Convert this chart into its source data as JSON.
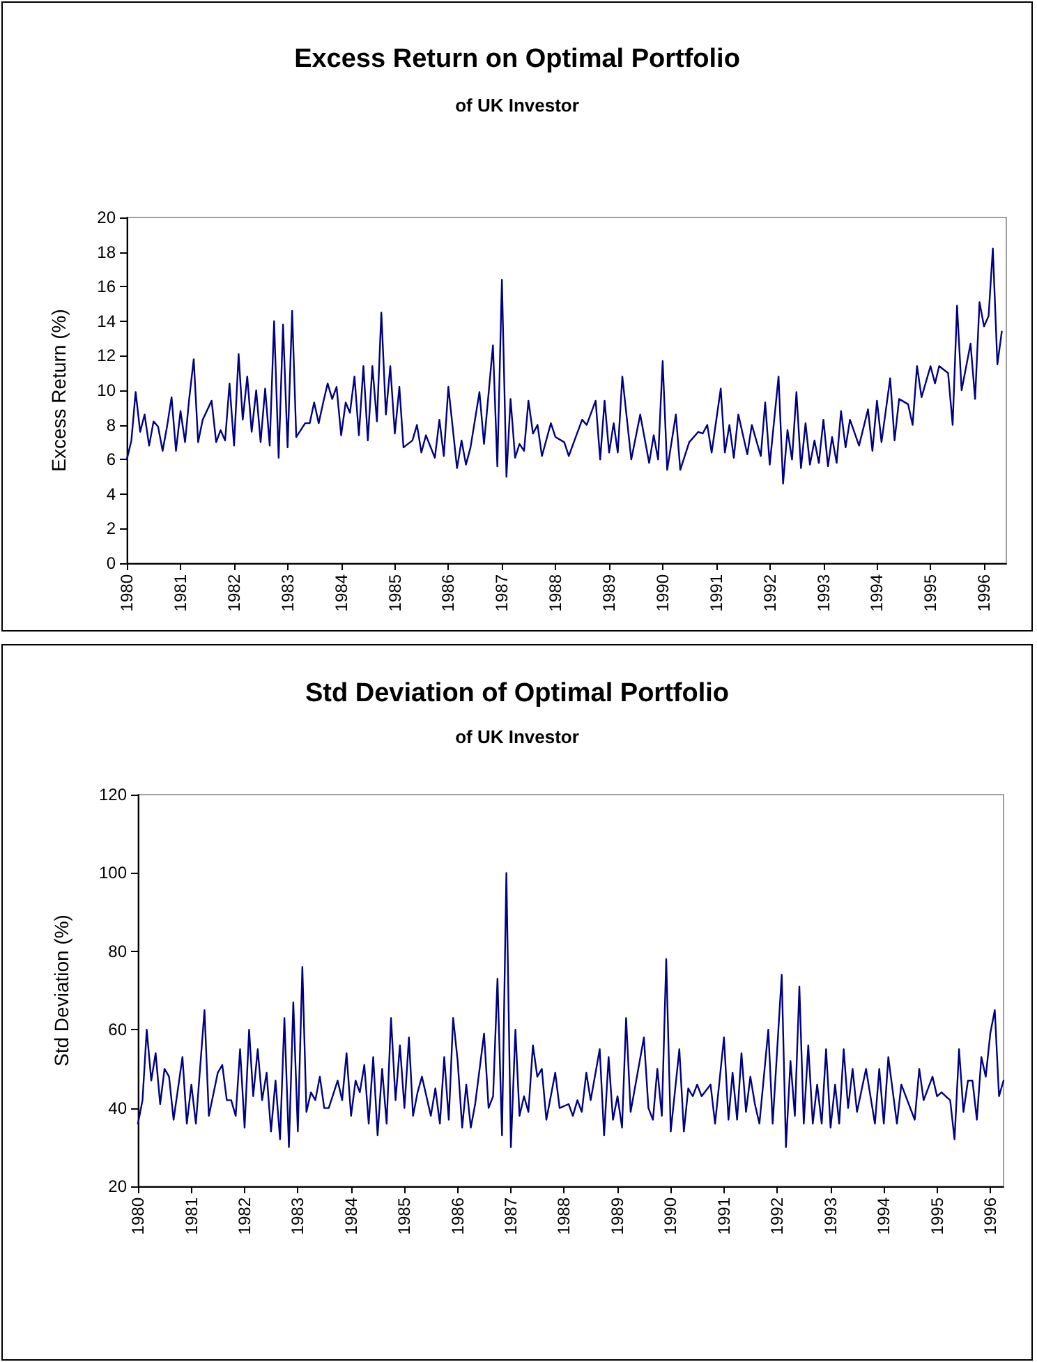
{
  "chart_data": [
    {
      "type": "line",
      "title": "Excess Return on Optimal Portfolio",
      "subtitle": "of UK Investor",
      "ylabel": "Excess Return (%)",
      "marker": "none",
      "line_style": "solid",
      "grid": false,
      "xlim": [
        "1980-01",
        "1996-06"
      ],
      "xticks": [
        "1980",
        "1981",
        "1982",
        "1983",
        "1984",
        "1985",
        "1986",
        "1987",
        "1988",
        "1989",
        "1990",
        "1991",
        "1992",
        "1993",
        "1994",
        "1995",
        "1996"
      ],
      "ylim": [
        0,
        20
      ],
      "yticks": [
        0,
        2,
        4,
        6,
        8,
        10,
        12,
        14,
        16,
        18,
        20
      ],
      "series": [
        {
          "color": "#000080",
          "x": [
            "1980-01",
            "1980-02",
            "1980-03",
            "1980-04",
            "1980-05",
            "1980-06",
            "1980-07",
            "1980-08",
            "1980-09",
            "1980-10",
            "1980-11",
            "1980-12",
            "1981-01",
            "1981-02",
            "1981-03",
            "1981-04",
            "1981-05",
            "1981-06",
            "1981-08",
            "1981-09",
            "1981-10",
            "1981-11",
            "1981-12",
            "1982-01",
            "1982-02",
            "1982-03",
            "1982-04",
            "1982-05",
            "1982-06",
            "1982-07",
            "1982-08",
            "1982-09",
            "1982-10",
            "1982-11",
            "1982-12",
            "1983-01",
            "1983-02",
            "1983-03",
            "1983-05",
            "1983-06",
            "1983-07",
            "1983-08",
            "1983-09",
            "1983-10",
            "1983-11",
            "1983-12",
            "1984-01",
            "1984-02",
            "1984-03",
            "1984-04",
            "1984-05",
            "1984-06",
            "1984-07",
            "1984-08",
            "1984-09",
            "1984-10",
            "1984-11",
            "1984-12",
            "1985-01",
            "1985-02",
            "1985-03",
            "1985-05",
            "1985-06",
            "1985-07",
            "1985-08",
            "1985-10",
            "1985-11",
            "1985-12",
            "1986-01",
            "1986-03",
            "1986-04",
            "1986-05",
            "1986-06",
            "1986-08",
            "1986-09",
            "1986-11",
            "1986-12",
            "1987-01",
            "1987-02",
            "1987-03",
            "1987-04",
            "1987-05",
            "1987-06",
            "1987-07",
            "1987-08",
            "1987-09",
            "1987-10",
            "1987-12",
            "1988-01",
            "1988-03",
            "1988-04",
            "1988-05",
            "1988-07",
            "1988-08",
            "1988-10",
            "1988-11",
            "1988-12",
            "1989-01",
            "1989-02",
            "1989-03",
            "1989-04",
            "1989-06",
            "1989-08",
            "1989-10",
            "1989-11",
            "1989-12",
            "1990-01",
            "1990-02",
            "1990-04",
            "1990-05",
            "1990-07",
            "1990-09",
            "1990-10",
            "1990-11",
            "1990-12",
            "1991-02",
            "1991-03",
            "1991-04",
            "1991-05",
            "1991-06",
            "1991-08",
            "1991-09",
            "1991-11",
            "1991-12",
            "1992-01",
            "1992-03",
            "1992-04",
            "1992-05",
            "1992-06",
            "1992-07",
            "1992-08",
            "1992-09",
            "1992-10",
            "1992-11",
            "1992-12",
            "1993-01",
            "1993-02",
            "1993-03",
            "1993-04",
            "1993-05",
            "1993-06",
            "1993-07",
            "1993-09",
            "1993-11",
            "1993-12",
            "1994-01",
            "1994-02",
            "1994-04",
            "1994-05",
            "1994-06",
            "1994-08",
            "1994-09",
            "1994-10",
            "1994-11",
            "1995-01",
            "1995-02",
            "1995-03",
            "1995-05",
            "1995-06",
            "1995-07",
            "1995-08",
            "1995-10",
            "1995-11",
            "1995-12",
            "1996-01",
            "1996-02",
            "1996-03",
            "1996-04",
            "1996-05"
          ],
          "values": [
            6.0,
            7.1,
            9.9,
            7.6,
            8.6,
            6.8,
            8.2,
            7.9,
            6.5,
            7.9,
            9.6,
            6.5,
            8.8,
            7.0,
            9.5,
            11.8,
            7.0,
            8.3,
            9.4,
            7.0,
            7.7,
            7.1,
            10.4,
            6.8,
            12.1,
            8.3,
            10.8,
            7.6,
            10.0,
            7.0,
            10.1,
            6.8,
            14.0,
            6.1,
            13.8,
            6.7,
            14.6,
            7.3,
            8.1,
            8.1,
            9.3,
            8.1,
            9.3,
            10.4,
            9.5,
            10.2,
            7.4,
            9.3,
            8.7,
            10.8,
            7.4,
            11.4,
            7.1,
            11.4,
            8.2,
            14.5,
            8.6,
            11.4,
            7.5,
            10.2,
            6.7,
            7.1,
            8.0,
            6.4,
            7.4,
            6.1,
            8.3,
            6.2,
            10.2,
            5.5,
            7.1,
            5.7,
            6.7,
            9.9,
            6.9,
            12.6,
            5.6,
            16.4,
            5.0,
            9.5,
            6.1,
            6.9,
            6.5,
            9.4,
            7.5,
            8.0,
            6.2,
            8.1,
            7.3,
            7.0,
            6.2,
            6.9,
            8.3,
            8.0,
            9.4,
            6.0,
            9.4,
            6.4,
            8.1,
            6.4,
            10.8,
            6.0,
            8.6,
            5.8,
            7.4,
            6.0,
            11.7,
            5.4,
            8.6,
            5.4,
            7.0,
            7.6,
            7.5,
            8.0,
            6.4,
            10.1,
            6.4,
            8.0,
            6.1,
            8.6,
            6.3,
            8.0,
            6.2,
            9.3,
            5.7,
            10.8,
            4.6,
            7.7,
            6.0,
            9.9,
            5.5,
            8.1,
            5.7,
            7.1,
            5.8,
            8.3,
            5.6,
            7.3,
            5.8,
            8.8,
            6.7,
            8.3,
            6.8,
            8.9,
            6.5,
            9.4,
            7.0,
            10.7,
            7.1,
            9.5,
            9.2,
            8.0,
            11.4,
            9.6,
            11.4,
            10.4,
            11.4,
            11.0,
            8.0,
            14.9,
            10.0,
            12.7,
            9.5,
            15.1,
            13.7,
            14.3,
            18.2,
            11.5,
            13.4
          ]
        }
      ]
    },
    {
      "type": "line",
      "title": "Std Deviation of Optimal Portfolio",
      "subtitle": "of UK Investor",
      "ylabel": "Std Deviation (%)",
      "marker": "none",
      "line_style": "solid",
      "grid": false,
      "xlim": [
        "1980-01",
        "1996-04"
      ],
      "xticks": [
        "1980",
        "1981",
        "1982",
        "1983",
        "1984",
        "1985",
        "1986",
        "1987",
        "1988",
        "1989",
        "1990",
        "1991",
        "1992",
        "1993",
        "1994",
        "1995",
        "1996"
      ],
      "ylim": [
        20,
        120
      ],
      "yticks": [
        20,
        40,
        60,
        80,
        100,
        120
      ],
      "series": [
        {
          "color": "#000080",
          "x": [
            "1980-01",
            "1980-02",
            "1980-03",
            "1980-04",
            "1980-05",
            "1980-06",
            "1980-07",
            "1980-08",
            "1980-09",
            "1980-11",
            "1980-12",
            "1981-01",
            "1981-02",
            "1981-04",
            "1981-05",
            "1981-07",
            "1981-08",
            "1981-09",
            "1981-10",
            "1981-11",
            "1981-12",
            "1982-01",
            "1982-02",
            "1982-03",
            "1982-04",
            "1982-05",
            "1982-06",
            "1982-07",
            "1982-08",
            "1982-09",
            "1982-10",
            "1982-11",
            "1982-12",
            "1983-01",
            "1983-02",
            "1983-03",
            "1983-04",
            "1983-05",
            "1983-06",
            "1983-07",
            "1983-08",
            "1983-10",
            "1983-11",
            "1983-12",
            "1984-01",
            "1984-02",
            "1984-03",
            "1984-04",
            "1984-05",
            "1984-06",
            "1984-07",
            "1984-08",
            "1984-09",
            "1984-10",
            "1984-11",
            "1984-12",
            "1985-01",
            "1985-02",
            "1985-03",
            "1985-04",
            "1985-05",
            "1985-07",
            "1985-08",
            "1985-09",
            "1985-10",
            "1985-11",
            "1985-12",
            "1986-01",
            "1986-02",
            "1986-03",
            "1986-04",
            "1986-05",
            "1986-07",
            "1986-08",
            "1986-09",
            "1986-10",
            "1986-11",
            "1986-12",
            "1987-01",
            "1987-02",
            "1987-03",
            "1987-04",
            "1987-05",
            "1987-06",
            "1987-07",
            "1987-08",
            "1987-09",
            "1987-11",
            "1987-12",
            "1988-02",
            "1988-03",
            "1988-04",
            "1988-05",
            "1988-06",
            "1988-07",
            "1988-09",
            "1988-10",
            "1988-11",
            "1988-12",
            "1989-01",
            "1989-02",
            "1989-03",
            "1989-04",
            "1989-07",
            "1989-08",
            "1989-09",
            "1989-10",
            "1989-11",
            "1989-12",
            "1990-01",
            "1990-03",
            "1990-04",
            "1990-05",
            "1990-06",
            "1990-07",
            "1990-08",
            "1990-10",
            "1990-11",
            "1991-01",
            "1991-02",
            "1991-03",
            "1991-04",
            "1991-05",
            "1991-06",
            "1991-07",
            "1991-08",
            "1991-09",
            "1991-11",
            "1991-12",
            "1992-02",
            "1992-03",
            "1992-04",
            "1992-05",
            "1992-06",
            "1992-07",
            "1992-08",
            "1992-09",
            "1992-10",
            "1992-11",
            "1992-12",
            "1993-01",
            "1993-02",
            "1993-03",
            "1993-04",
            "1993-05",
            "1993-06",
            "1993-07",
            "1993-09",
            "1993-11",
            "1993-12",
            "1994-01",
            "1994-02",
            "1994-04",
            "1994-05",
            "1994-08",
            "1994-09",
            "1994-10",
            "1994-12",
            "1995-01",
            "1995-02",
            "1995-03",
            "1995-04",
            "1995-05",
            "1995-06",
            "1995-07",
            "1995-08",
            "1995-09",
            "1995-10",
            "1995-11",
            "1995-12",
            "1996-01",
            "1996-02",
            "1996-03",
            "1996-04"
          ],
          "values": [
            36,
            42,
            60,
            47,
            54,
            41,
            50,
            48,
            37,
            53,
            36,
            46,
            36,
            65,
            38,
            49,
            51,
            42,
            42,
            38,
            55,
            35,
            60,
            43,
            55,
            42,
            49,
            34,
            47,
            32,
            63,
            30,
            67,
            34,
            76,
            39,
            44,
            42,
            48,
            40,
            40,
            47,
            42,
            54,
            38,
            47,
            44,
            51,
            36,
            53,
            33,
            50,
            36,
            63,
            42,
            56,
            40,
            58,
            38,
            44,
            48,
            38,
            45,
            36,
            53,
            37,
            63,
            52,
            35,
            46,
            35,
            41,
            59,
            40,
            43,
            73,
            33,
            100,
            30,
            60,
            38,
            43,
            39,
            56,
            48,
            50,
            37,
            49,
            40,
            41,
            38,
            42,
            39,
            49,
            42,
            55,
            33,
            53,
            37,
            43,
            35,
            63,
            39,
            58,
            40,
            37,
            50,
            38,
            78,
            34,
            55,
            34,
            45,
            43,
            46,
            43,
            46,
            36,
            58,
            37,
            49,
            37,
            54,
            39,
            48,
            41,
            36,
            60,
            36,
            74,
            30,
            52,
            38,
            71,
            36,
            56,
            36,
            46,
            36,
            55,
            35,
            46,
            36,
            55,
            40,
            50,
            39,
            50,
            36,
            50,
            36,
            53,
            36,
            46,
            37,
            50,
            42,
            48,
            43,
            44,
            43,
            42,
            32,
            55,
            39,
            47,
            47,
            37,
            53,
            48,
            59,
            65,
            43,
            47
          ]
        }
      ]
    }
  ]
}
